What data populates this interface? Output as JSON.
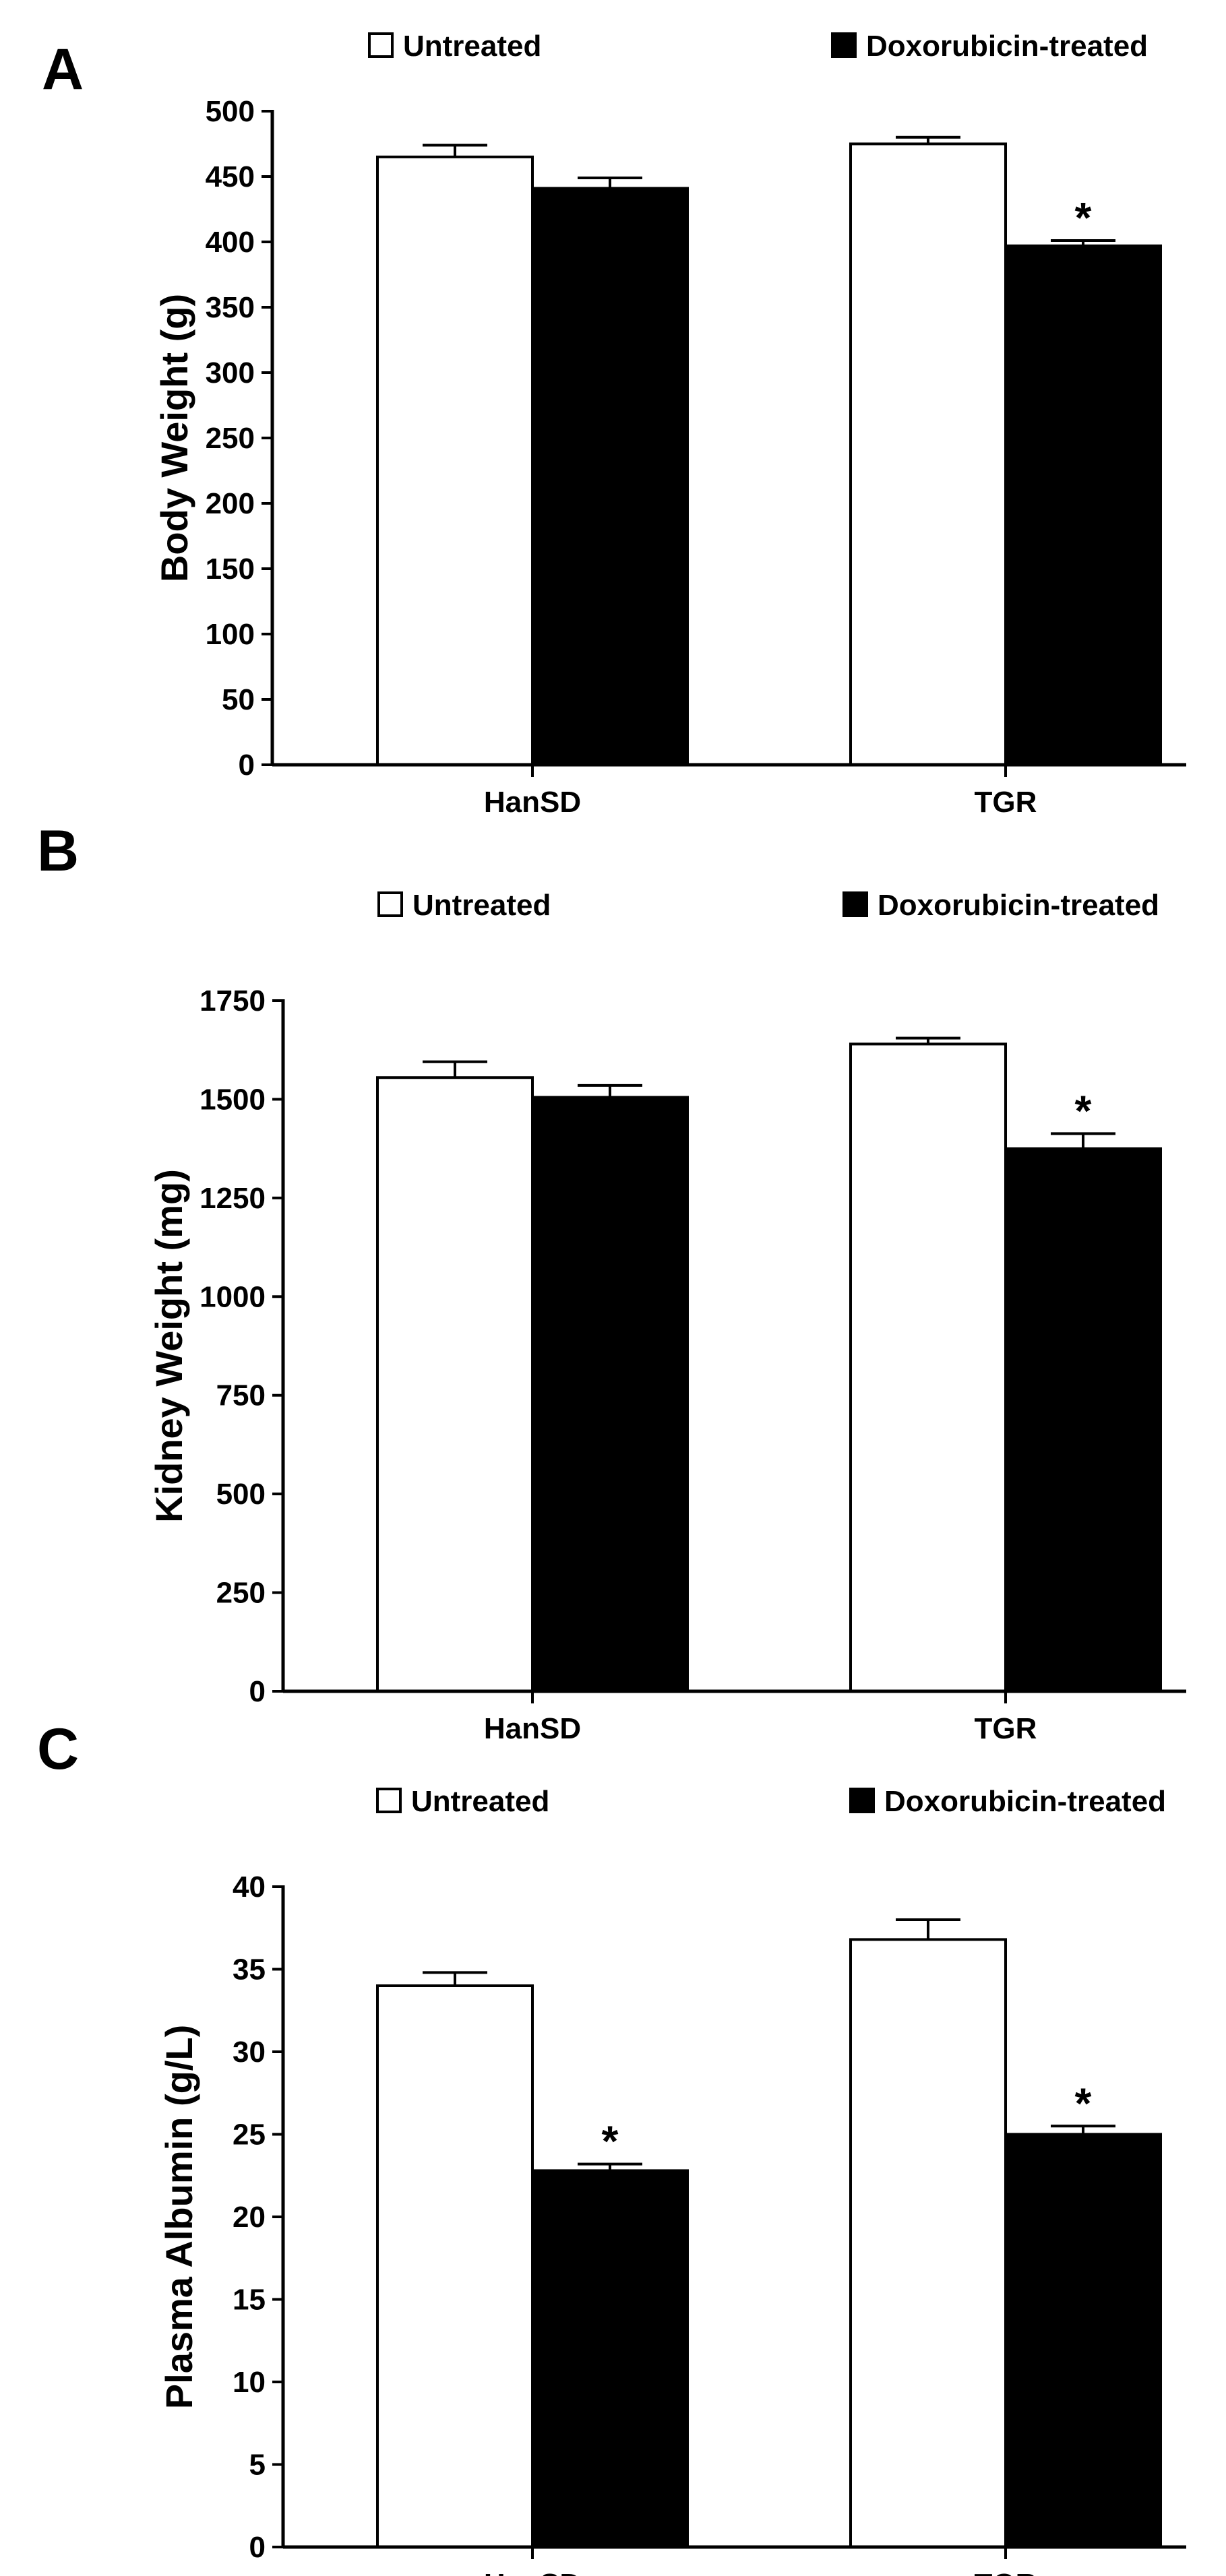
{
  "colors": {
    "untreated_fill": "#ffffff",
    "treated_fill": "#000000",
    "stroke": "#000000"
  },
  "chart_data": [
    {
      "panel": "A",
      "type": "bar",
      "legend": [
        "Untreated",
        "Doxorubicin-treated"
      ],
      "categories": [
        "HanSD",
        "TGR"
      ],
      "series": [
        {
          "name": "Untreated",
          "values": [
            465,
            475
          ],
          "errors": [
            9,
            5
          ]
        },
        {
          "name": "Doxorubicin-treated",
          "values": [
            441,
            397
          ],
          "errors": [
            8,
            4
          ]
        }
      ],
      "significance": [
        null,
        null,
        null,
        "*"
      ],
      "ylabel": "Body Weight (g)",
      "xlabel": "",
      "ylim": [
        0,
        500
      ],
      "yticks": [
        "0",
        "50",
        "100",
        "150",
        "200",
        "250",
        "300",
        "350",
        "400",
        "450",
        "500"
      ]
    },
    {
      "panel": "B",
      "type": "bar",
      "legend": [
        "Untreated",
        "Doxorubicin-treated"
      ],
      "categories": [
        "HanSD",
        "TGR"
      ],
      "series": [
        {
          "name": "Untreated",
          "values": [
            1555,
            1640
          ],
          "errors": [
            40,
            15
          ]
        },
        {
          "name": "Doxorubicin-treated",
          "values": [
            1505,
            1375
          ],
          "errors": [
            30,
            38
          ]
        }
      ],
      "significance": [
        null,
        null,
        null,
        "*"
      ],
      "ylabel": "Kidney Weight (mg)",
      "xlabel": "",
      "ylim": [
        0,
        1750
      ],
      "yticks": [
        "0",
        "250",
        "500",
        "750",
        "1000",
        "1250",
        "1500",
        "1750"
      ]
    },
    {
      "panel": "C",
      "type": "bar",
      "legend": [
        "Untreated",
        "Doxorubicin-treated"
      ],
      "categories": [
        "HanSD",
        "TGR"
      ],
      "series": [
        {
          "name": "Untreated",
          "values": [
            34,
            36.8
          ],
          "errors": [
            0.8,
            1.2
          ]
        },
        {
          "name": "Doxorubicin-treated",
          "values": [
            22.8,
            25
          ],
          "errors": [
            0.4,
            0.5
          ]
        }
      ],
      "significance": [
        null,
        "*",
        null,
        "*"
      ],
      "ylabel": "Plasma Albumin (g/L)",
      "xlabel": "",
      "ylim": [
        0,
        40
      ],
      "yticks": [
        "0",
        "5",
        "10",
        "15",
        "20",
        "25",
        "30",
        "35",
        "40"
      ]
    }
  ]
}
